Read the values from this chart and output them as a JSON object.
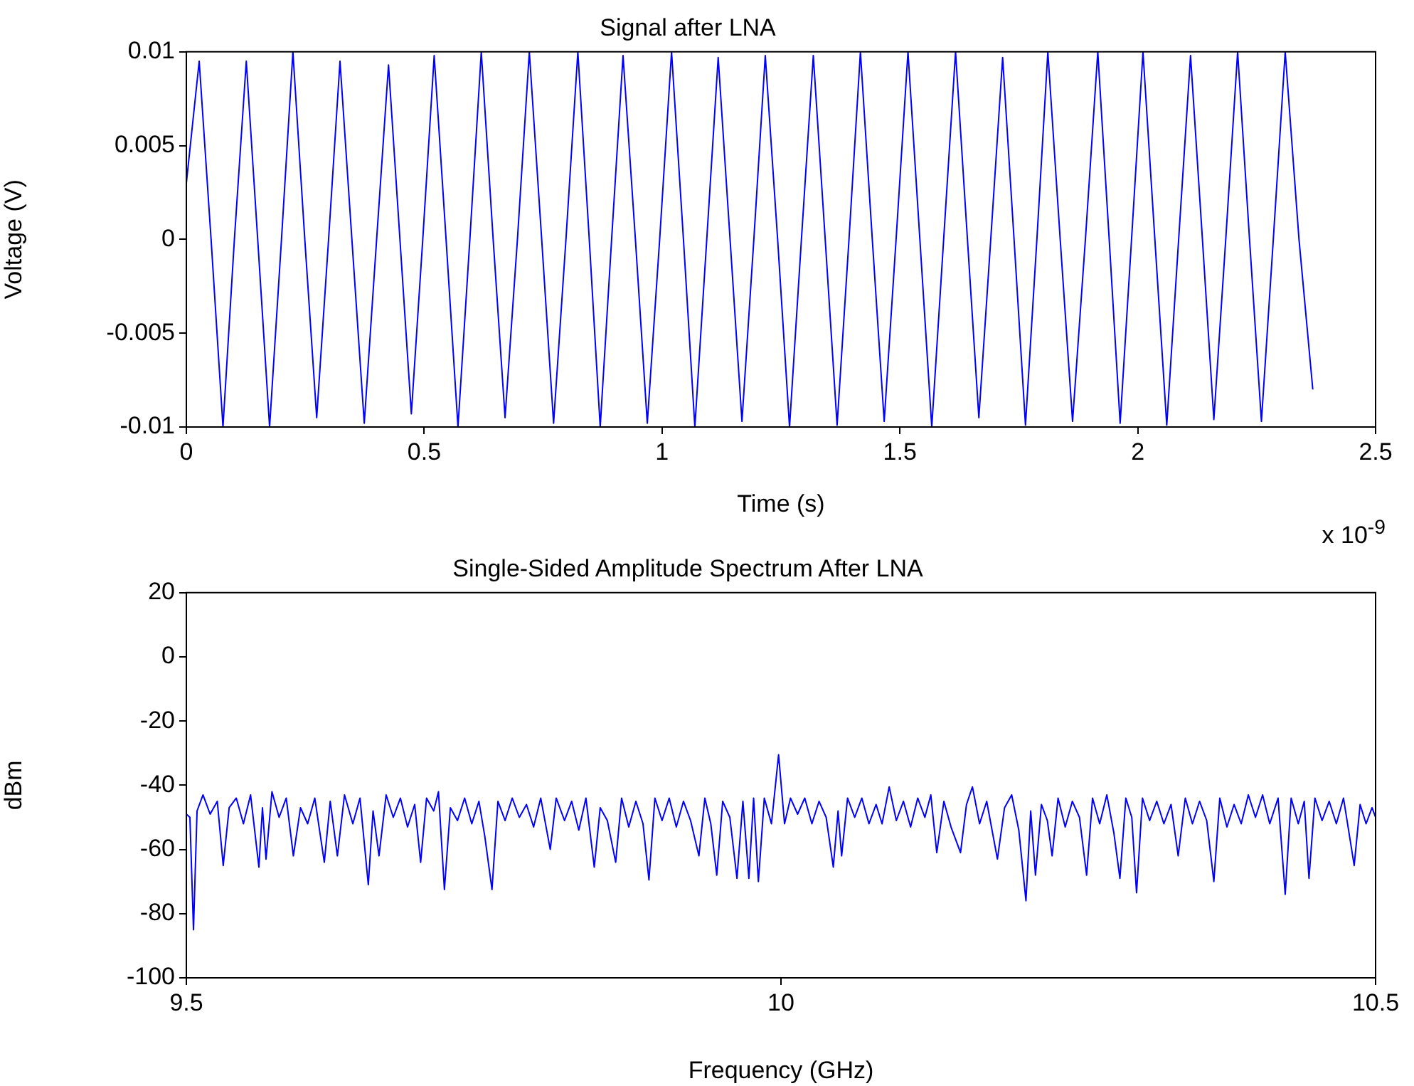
{
  "chart_data": [
    {
      "type": "line",
      "title": "Signal after LNA",
      "xlabel": "Time (s)",
      "ylabel": "Voltage (V)",
      "annotations": [
        "x 10$^{-9}$"
      ],
      "xlim": [
        0,
        2.5
      ],
      "xticks": [
        0,
        0.5,
        1,
        1.5,
        2,
        2.5
      ],
      "ylim": [
        -0.01,
        0.01
      ],
      "yticks": [
        -0.01,
        -0.005,
        0,
        0.005,
        0.01
      ],
      "grid": false,
      "legend": false,
      "marker": "none",
      "line_style": "solid",
      "series": [
        {
          "color": "#0000ff",
          "x": [
            0,
            0.027,
            0.052,
            0.077,
            0.101,
            0.126,
            0.15,
            0.175,
            0.2,
            0.224,
            0.249,
            0.274,
            0.299,
            0.323,
            0.348,
            0.374,
            0.4,
            0.425,
            0.449,
            0.473,
            0.497,
            0.521,
            0.546,
            0.571,
            0.596,
            0.62,
            0.645,
            0.67,
            0.696,
            0.721,
            0.747,
            0.772,
            0.798,
            0.823,
            0.847,
            0.87,
            0.894,
            0.918,
            0.944,
            0.969,
            0.995,
            1.02,
            1.045,
            1.069,
            1.094,
            1.118,
            1.143,
            1.168,
            1.193,
            1.217,
            1.243,
            1.268,
            1.293,
            1.318,
            1.343,
            1.368,
            1.393,
            1.417,
            1.442,
            1.467,
            1.492,
            1.517,
            1.542,
            1.567,
            1.592,
            1.617,
            1.642,
            1.666,
            1.691,
            1.716,
            1.74,
            1.764,
            1.788,
            1.811,
            1.837,
            1.863,
            1.89,
            1.916,
            1.94,
            1.963,
            1.987,
            2.011,
            2.036,
            2.061,
            2.086,
            2.111,
            2.136,
            2.16,
            2.185,
            2.21,
            2.235,
            2.26,
            2.285,
            2.31,
            2.339,
            2.368
          ],
          "values": [
            0.003,
            0.0095,
            0,
            -0.01,
            0,
            0.0095,
            0,
            -0.01,
            0,
            0.01,
            0,
            -0.0095,
            0,
            0.0095,
            0,
            -0.0098,
            0,
            0.0093,
            0,
            -0.0093,
            0,
            0.0098,
            0,
            -0.01,
            0,
            0.01,
            0,
            -0.0095,
            0,
            0.01,
            0,
            -0.0098,
            0,
            0.01,
            0,
            -0.01,
            0,
            0.0098,
            0,
            -0.0098,
            0,
            0.01,
            0,
            -0.01,
            0,
            0.0097,
            0,
            -0.0097,
            0,
            0.0098,
            0,
            -0.01,
            0,
            0.0098,
            0,
            -0.0099,
            0,
            0.01,
            0,
            -0.0097,
            0,
            0.01,
            0,
            -0.01,
            0,
            0.01,
            0,
            -0.0095,
            0,
            0.0097,
            0,
            -0.0099,
            0,
            0.01,
            0,
            -0.0097,
            0,
            0.01,
            0,
            -0.0098,
            0,
            0.01,
            0,
            -0.0099,
            0,
            0.0098,
            0,
            -0.0096,
            0,
            0.01,
            0,
            -0.0097,
            0,
            0.01,
            0,
            -0.008
          ]
        }
      ]
    },
    {
      "type": "line",
      "title": "Single-Sided Amplitude Spectrum After LNA",
      "xlabel": "Frequency (GHz)",
      "ylabel": "dBm",
      "xlim": [
        9.5,
        10.5
      ],
      "xticks": [
        9.5,
        10,
        10.5
      ],
      "ylim": [
        -100,
        20
      ],
      "yticks": [
        -100,
        -80,
        -60,
        -40,
        -20,
        0,
        20
      ],
      "grid": false,
      "legend": false,
      "marker": "none",
      "line_style": "solid",
      "series": [
        {
          "color": "#0000ff",
          "x": [
            9.5,
            9.503,
            9.506,
            9.509,
            9.514,
            9.52,
            9.526,
            9.531,
            9.536,
            9.542,
            9.548,
            9.554,
            9.561,
            9.564,
            9.567,
            9.572,
            9.578,
            9.584,
            9.59,
            9.596,
            9.602,
            9.608,
            9.616,
            9.621,
            9.627,
            9.633,
            9.64,
            9.646,
            9.653,
            9.657,
            9.662,
            9.668,
            9.674,
            9.68,
            9.686,
            9.692,
            9.697,
            9.702,
            9.708,
            9.712,
            9.717,
            9.722,
            9.728,
            9.734,
            9.74,
            9.746,
            9.751,
            9.757,
            9.762,
            9.768,
            9.774,
            9.78,
            9.786,
            9.792,
            9.798,
            9.806,
            9.811,
            9.818,
            9.824,
            9.83,
            9.836,
            9.843,
            9.848,
            9.854,
            9.861,
            9.866,
            9.872,
            9.878,
            9.884,
            9.889,
            9.894,
            9.9,
            9.906,
            9.912,
            9.918,
            9.924,
            9.931,
            9.936,
            9.941,
            9.946,
            9.951,
            9.957,
            9.963,
            9.968,
            9.973,
            9.977,
            9.981,
            9.986,
            9.992,
            9.998,
            10.003,
            10.008,
            10.014,
            10.02,
            10.026,
            10.032,
            10.038,
            10.044,
            10.048,
            10.051,
            10.056,
            10.062,
            10.068,
            10.074,
            10.08,
            10.085,
            10.091,
            10.097,
            10.103,
            10.109,
            10.115,
            10.121,
            10.126,
            10.131,
            10.137,
            10.143,
            10.151,
            10.156,
            10.161,
            10.167,
            10.173,
            10.182,
            10.188,
            10.194,
            10.2,
            10.206,
            10.21,
            10.214,
            10.219,
            10.224,
            10.228,
            10.233,
            10.239,
            10.245,
            10.251,
            10.257,
            10.262,
            10.268,
            10.274,
            10.28,
            10.285,
            10.29,
            10.295,
            10.299,
            10.304,
            10.31,
            10.316,
            10.322,
            10.328,
            10.334,
            10.34,
            10.346,
            10.352,
            10.358,
            10.364,
            10.369,
            10.375,
            10.381,
            10.387,
            10.393,
            10.399,
            10.405,
            10.411,
            10.418,
            10.424,
            10.429,
            10.435,
            10.44,
            10.444,
            10.449,
            10.455,
            10.461,
            10.467,
            10.473,
            10.482,
            10.487,
            10.492,
            10.497,
            10.5
          ],
          "values": [
            -49,
            -50,
            -85,
            -48,
            -43,
            -49,
            -45,
            -65,
            -47,
            -44,
            -52,
            -43,
            -65.5,
            -47,
            -63,
            -42,
            -50,
            -44,
            -62,
            -47,
            -52,
            -44,
            -64,
            -45,
            -62,
            -43,
            -52,
            -44,
            -71,
            -48,
            -62,
            -43,
            -50,
            -44,
            -53,
            -46,
            -64,
            -44,
            -48,
            -42,
            -72.5,
            -47,
            -51,
            -44,
            -52,
            -45,
            -56,
            -72.5,
            -45,
            -51,
            -44,
            -50,
            -46,
            -53,
            -44,
            -60,
            -44,
            -51,
            -45,
            -54,
            -44,
            -65.5,
            -47,
            -51,
            -64,
            -44,
            -53,
            -45,
            -52,
            -69.5,
            -44,
            -51,
            -44,
            -53,
            -45,
            -51,
            -62,
            -44,
            -52,
            -68,
            -45,
            -50,
            -69,
            -45,
            -69,
            -44,
            -70,
            -44,
            -52,
            -30.5,
            -52,
            -44,
            -49,
            -44,
            -52,
            -45,
            -50,
            -65.5,
            -48,
            -62,
            -44,
            -50,
            -44,
            -52,
            -46,
            -52,
            -40.5,
            -51,
            -45,
            -53,
            -44,
            -50,
            -43,
            -61,
            -45,
            -53,
            -61,
            -46,
            -40.5,
            -52,
            -45,
            -63,
            -47,
            -43,
            -54,
            -76,
            -48,
            -68,
            -46,
            -51,
            -62,
            -44,
            -53,
            -45,
            -50,
            -68,
            -44,
            -52,
            -43,
            -55,
            -69,
            -44,
            -50,
            -73.5,
            -44,
            -51,
            -45,
            -52,
            -46,
            -62,
            -44,
            -52,
            -45,
            -51,
            -70,
            -44,
            -53,
            -46,
            -52,
            -43,
            -50,
            -43,
            -52,
            -44,
            -74,
            -44,
            -52,
            -45,
            -69,
            -44,
            -51,
            -45,
            -52,
            -44,
            -65,
            -46,
            -52,
            -47,
            -50
          ]
        }
      ]
    }
  ]
}
